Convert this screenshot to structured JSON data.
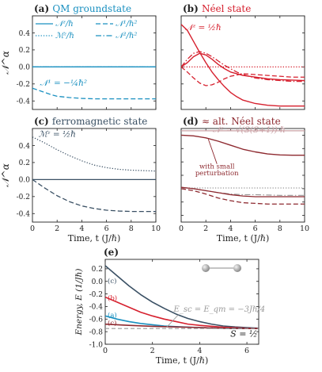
{
  "colors": {
    "qm": "#1a90c0",
    "neel": "#d6202e",
    "ferro": "#3a5064",
    "altneel": "#8e2a30",
    "altneel_light": "#c9a0a4",
    "grey": "#9a9a9a",
    "axis": "#222222"
  },
  "chart_data": [
    {
      "type": "line",
      "panel": "a",
      "title": "(a) QM groundstate",
      "xlabel": "",
      "ylabel": "𝒩^α",
      "xlim": [
        0,
        10
      ],
      "ylim": [
        -0.5,
        0.6
      ],
      "xticks": [
        0,
        2,
        4,
        6,
        8,
        10
      ],
      "yticks": [
        -0.4,
        -0.2,
        0.0,
        0.2,
        0.4
      ],
      "ytick_labels": [
        "-0.4",
        "-0.2",
        "0.0",
        "0.2",
        "0.4"
      ],
      "show_xtick_labels": false,
      "show_ytick_labels": true,
      "legend": [
        "𝒩ᶻ/ℏ",
        "𝒩¹/ℏ²",
        "ℳᶻ/ℏ",
        "𝒩²/ℏ²"
      ],
      "annotations": [
        {
          "text": "𝒩¹ = −¼ℏ²",
          "x": 0.6,
          "y": -0.22
        }
      ],
      "series": [
        {
          "style": "solid",
          "x": [
            0,
            10
          ],
          "y": [
            0,
            0
          ]
        },
        {
          "style": "dashed",
          "x": [
            0,
            0.4,
            0.8,
            1.2,
            1.6,
            2,
            3,
            4,
            5,
            6,
            8,
            10
          ],
          "y": [
            -0.25,
            -0.27,
            -0.29,
            -0.31,
            -0.33,
            -0.345,
            -0.36,
            -0.37,
            -0.375,
            -0.375,
            -0.375,
            -0.375
          ]
        },
        {
          "style": "dotted",
          "x": [
            0,
            10
          ],
          "y": [
            0,
            0
          ]
        },
        {
          "style": "dashdot",
          "x": [
            0,
            10
          ],
          "y": [
            0,
            0
          ]
        }
      ]
    },
    {
      "type": "line",
      "panel": "b",
      "title": "(b) Néel state",
      "xlabel": "",
      "ylabel": "",
      "xlim": [
        0,
        10
      ],
      "ylim": [
        -0.5,
        0.6
      ],
      "xticks": [
        0,
        2,
        4,
        6,
        8,
        10
      ],
      "yticks": [
        -0.4,
        -0.2,
        0.0,
        0.2,
        0.4
      ],
      "show_xtick_labels": false,
      "show_ytick_labels": false,
      "annotations": [
        {
          "text": "𝒩ᶻ = ½ℏ",
          "x": 0.3,
          "y": 0.43
        }
      ],
      "series": [
        {
          "style": "solid",
          "x": [
            0,
            0.5,
            1,
            1.5,
            2,
            2.5,
            3,
            3.5,
            4,
            4.5,
            5,
            6,
            7,
            8,
            9,
            10
          ],
          "y": [
            0.5,
            0.43,
            0.3,
            0.17,
            0.05,
            -0.06,
            -0.15,
            -0.23,
            -0.3,
            -0.35,
            -0.39,
            -0.43,
            -0.45,
            -0.46,
            -0.46,
            -0.46
          ]
        },
        {
          "style": "solid",
          "x": [
            0,
            0.5,
            1,
            1.5,
            2,
            2.5,
            3,
            3.5,
            4,
            5,
            6,
            7,
            8,
            10
          ],
          "y": [
            0,
            0.05,
            0.12,
            0.16,
            0.14,
            0.09,
            0.03,
            -0.02,
            -0.06,
            -0.1,
            -0.12,
            -0.14,
            -0.15,
            -0.16
          ]
        },
        {
          "style": "dashdot",
          "x": [
            0,
            0.5,
            1,
            1.5,
            2,
            2.5,
            3,
            3.5,
            4,
            4.5,
            5,
            6,
            7,
            8,
            9,
            10
          ],
          "y": [
            0,
            0.09,
            0.16,
            0.18,
            0.16,
            0.12,
            0.07,
            0.02,
            -0.02,
            -0.06,
            -0.09,
            -0.13,
            -0.15,
            -0.16,
            -0.17,
            -0.17
          ]
        },
        {
          "style": "dashed",
          "x": [
            0,
            0.5,
            1,
            1.5,
            2,
            2.5,
            3,
            3.5,
            4,
            5,
            6,
            7,
            8,
            9,
            10
          ],
          "y": [
            0,
            -0.06,
            -0.13,
            -0.19,
            -0.22,
            -0.21,
            -0.18,
            -0.14,
            -0.11,
            -0.08,
            -0.09,
            -0.1,
            -0.11,
            -0.12,
            -0.12
          ]
        },
        {
          "style": "dotted",
          "x": [
            0,
            10
          ],
          "y": [
            0,
            0
          ]
        }
      ]
    },
    {
      "type": "line",
      "panel": "c",
      "title": "(c) ferromagnetic state",
      "xlabel": "Time, t (J/ℏ)",
      "ylabel": "𝒩^α",
      "xlim": [
        0,
        10
      ],
      "ylim": [
        -0.5,
        0.6
      ],
      "xticks": [
        0,
        2,
        4,
        6,
        8,
        10
      ],
      "xtick_labels": [
        "0",
        "2",
        "4",
        "6",
        "8",
        "10"
      ],
      "yticks": [
        -0.4,
        -0.2,
        0.0,
        0.2,
        0.4
      ],
      "ytick_labels": [
        "-0.4",
        "-0.2",
        "0.0",
        "0.2",
        "0.4"
      ],
      "show_xtick_labels": true,
      "show_ytick_labels": true,
      "annotations": [
        {
          "text": "ℳᶻ = ½ℏ",
          "x": 0.5,
          "y": 0.5
        }
      ],
      "series": [
        {
          "style": "dotted",
          "x": [
            0,
            1,
            2,
            3,
            4,
            5,
            6,
            7,
            8,
            9,
            10
          ],
          "y": [
            0.5,
            0.43,
            0.35,
            0.28,
            0.22,
            0.17,
            0.14,
            0.12,
            0.11,
            0.105,
            0.1
          ]
        },
        {
          "style": "dashed",
          "x": [
            0,
            1,
            2,
            3,
            4,
            5,
            6,
            7,
            8,
            10
          ],
          "y": [
            0,
            -0.1,
            -0.19,
            -0.26,
            -0.31,
            -0.34,
            -0.36,
            -0.37,
            -0.375,
            -0.375
          ]
        },
        {
          "style": "solid",
          "x": [
            0,
            10
          ],
          "y": [
            0,
            0
          ]
        }
      ]
    },
    {
      "type": "line",
      "panel": "d",
      "title": "(d) ≈ alt. Néel state",
      "xlabel": "Time, t (J/ℏ)",
      "ylabel": "",
      "xlim": [
        0,
        10
      ],
      "ylim": [
        -0.5,
        0.9
      ],
      "xticks": [
        0,
        2,
        4,
        6,
        8,
        10
      ],
      "xtick_labels": [
        "0",
        "2",
        "4",
        "6",
        "8",
        "10"
      ],
      "yticks": [
        -0.4,
        -0.2,
        0.0,
        0.2,
        0.4,
        0.6,
        0.8
      ],
      "show_xtick_labels": true,
      "show_ytick_labels": false,
      "annotations": [
        {
          "text": "𝒩ᶻ = √(S(S+1)) ℏ",
          "x": 5.5,
          "y": 0.84
        },
        {
          "text": "with small",
          "x": 2.9,
          "y": 0.3
        },
        {
          "text": "perturbation",
          "x": 2.9,
          "y": 0.2
        }
      ],
      "series": [
        {
          "style": "solid",
          "x": [
            0,
            1,
            2,
            3,
            4,
            5,
            6,
            7,
            8,
            9,
            10
          ],
          "y": [
            0.8,
            0.79,
            0.76,
            0.71,
            0.65,
            0.59,
            0.55,
            0.52,
            0.505,
            0.5,
            0.5
          ]
        },
        {
          "style": "solid",
          "x": [
            0,
            10
          ],
          "y": [
            0.866,
            0.866
          ]
        },
        {
          "style": "dotted",
          "x": [
            0,
            10
          ],
          "y": [
            0.01,
            0.01
          ]
        },
        {
          "style": "dashdot",
          "x": [
            0,
            1,
            2,
            3,
            4,
            5,
            6,
            8,
            10
          ],
          "y": [
            0.02,
            0.0,
            -0.03,
            -0.06,
            -0.08,
            -0.09,
            -0.09,
            -0.1,
            -0.1
          ]
        },
        {
          "style": "solid",
          "x": [
            0,
            1,
            2,
            3,
            4,
            5,
            6,
            8,
            10
          ],
          "y": [
            0.02,
            0.0,
            -0.03,
            -0.06,
            -0.09,
            -0.11,
            -0.12,
            -0.12,
            -0.12
          ]
        },
        {
          "style": "dashed",
          "x": [
            0,
            1,
            2,
            3,
            4,
            5,
            6,
            7,
            8,
            10
          ],
          "y": [
            0,
            -0.03,
            -0.08,
            -0.14,
            -0.18,
            -0.21,
            -0.22,
            -0.23,
            -0.23,
            -0.23
          ]
        }
      ]
    },
    {
      "type": "line",
      "panel": "e",
      "title": "(e)",
      "xlabel": "Time, t (J/ℏ)",
      "ylabel": "Energy, E (1/Jℏ)",
      "xlim": [
        0,
        6.5
      ],
      "ylim": [
        -1.0,
        0.35
      ],
      "xticks": [
        0,
        2,
        4,
        6
      ],
      "xtick_labels": [
        "0",
        "2",
        "4",
        "6"
      ],
      "yticks": [
        -1.0,
        -0.8,
        -0.6,
        -0.4,
        -0.2,
        0.0,
        0.2
      ],
      "ytick_labels": [
        "-1.0",
        "-0.8",
        "-0.6",
        "-0.4",
        "-0.2",
        "0.0",
        "0.2"
      ],
      "annotations": [
        {
          "text": "E_sc = E_qm = −3Jℏ/4",
          "x": 2.9,
          "y": -0.48
        },
        {
          "text": "S = ½",
          "x": 5.3,
          "y": -0.88
        }
      ],
      "series": [
        {
          "name": "(c)",
          "x": [
            0,
            0.5,
            1,
            1.5,
            2,
            2.5,
            3,
            3.5,
            4,
            4.5,
            5,
            5.5,
            6,
            6.5
          ],
          "y": [
            0.25,
            0.09,
            -0.07,
            -0.21,
            -0.33,
            -0.43,
            -0.52,
            -0.59,
            -0.64,
            -0.68,
            -0.71,
            -0.725,
            -0.735,
            -0.745
          ]
        },
        {
          "name": "(b)",
          "x": [
            0,
            0.5,
            1,
            1.5,
            2,
            2.5,
            3,
            3.5,
            4,
            5,
            6,
            6.5
          ],
          "y": [
            -0.25,
            -0.33,
            -0.41,
            -0.49,
            -0.55,
            -0.6,
            -0.64,
            -0.68,
            -0.7,
            -0.73,
            -0.745,
            -0.75
          ]
        },
        {
          "name": "(a)",
          "x": [
            0,
            0.5,
            1,
            1.5,
            2,
            2.5,
            3,
            4,
            5,
            6,
            6.5
          ],
          "y": [
            -0.55,
            -0.6,
            -0.64,
            -0.67,
            -0.69,
            -0.71,
            -0.72,
            -0.735,
            -0.745,
            -0.75,
            -0.75
          ]
        },
        {
          "name": "(c)",
          "x": [
            0,
            1,
            2,
            3,
            4,
            5,
            6,
            6.5
          ],
          "y": [
            -0.68,
            -0.7,
            -0.715,
            -0.725,
            -0.735,
            -0.745,
            -0.75,
            -0.75
          ]
        },
        {
          "name": "",
          "x": [
            0,
            6.5
          ],
          "y": [
            -0.75,
            -0.75
          ]
        }
      ]
    }
  ]
}
